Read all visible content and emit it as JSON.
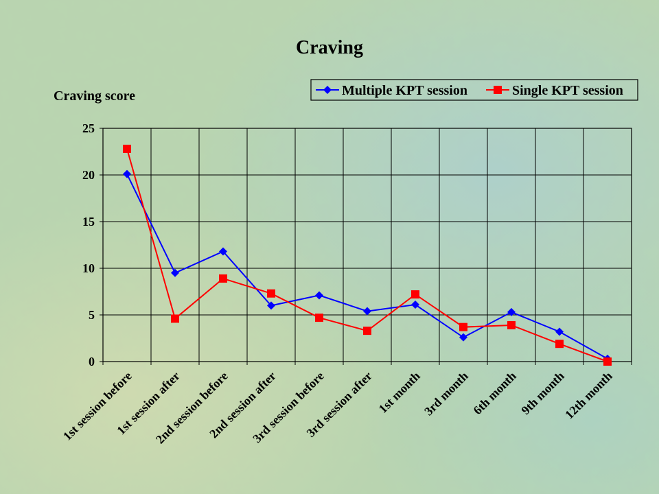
{
  "colors": {
    "background": "#b9d6b0",
    "multiple": "#0000ff",
    "single": "#ff0000",
    "grid": "#000000"
  },
  "chart_data": {
    "type": "line",
    "title": "Craving",
    "xlabel": "",
    "ylabel": "Craving score",
    "ylim": [
      0,
      25
    ],
    "yticks": [
      0,
      5,
      10,
      15,
      20,
      25
    ],
    "grid": true,
    "legend_position": "top-right",
    "categories": [
      "1st session before",
      "1st session after",
      "2nd session before",
      "2nd session after",
      "3rd session before",
      "3rd session after",
      "1st month",
      "3rd month",
      "6th month",
      "9th month",
      "12th month"
    ],
    "series": [
      {
        "name": "Multiple KPT session",
        "color": "#0000ff",
        "marker": "diamond",
        "values": [
          20.1,
          9.5,
          11.8,
          6.0,
          7.1,
          5.4,
          6.1,
          2.6,
          5.3,
          3.2,
          0.3
        ]
      },
      {
        "name": "Single KPT session",
        "color": "#ff0000",
        "marker": "square",
        "values": [
          22.8,
          4.6,
          8.9,
          7.3,
          4.7,
          3.3,
          7.2,
          3.7,
          3.9,
          1.9,
          0.0
        ]
      }
    ]
  }
}
